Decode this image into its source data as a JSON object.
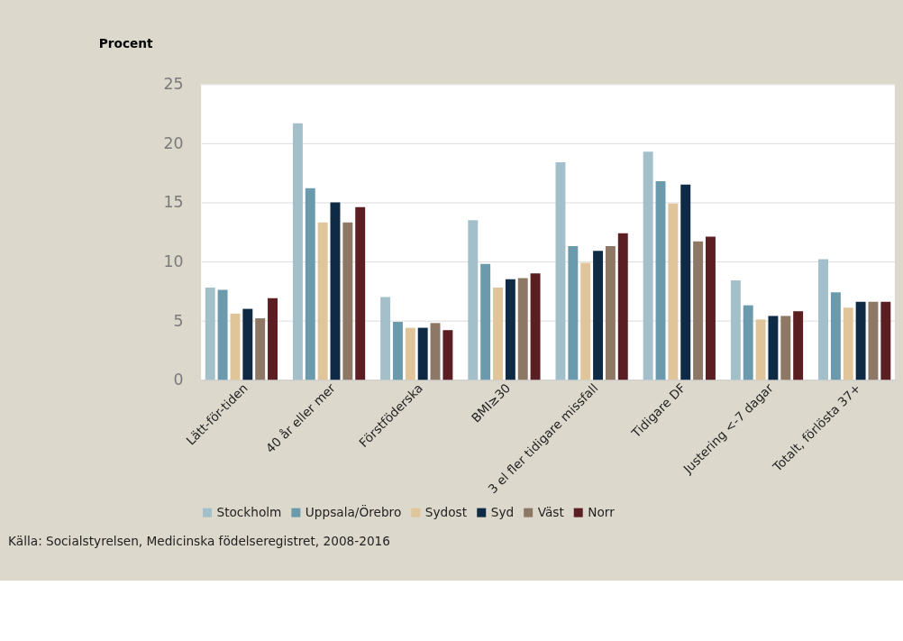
{
  "chart_data": {
    "type": "bar",
    "ylabel": "Procent",
    "categories": [
      "Lätt-för-tiden",
      "40 år eller mer",
      "Förstföderska",
      "BMI≥30",
      "3 el fler tidigare missfall",
      "Tidigare DF",
      "Justering <-7 dagar",
      "Totalt, förlösta 37+"
    ],
    "series": [
      {
        "name": "Stockholm",
        "color": "#a3bfca",
        "values": [
          7.8,
          21.7,
          7.0,
          13.5,
          18.4,
          19.3,
          8.4,
          10.2
        ]
      },
      {
        "name": "Uppsala/Örebro",
        "color": "#6a9aab",
        "values": [
          7.6,
          16.2,
          4.9,
          9.8,
          11.3,
          16.8,
          6.3,
          7.4
        ]
      },
      {
        "name": "Sydost",
        "color": "#e0c49a",
        "values": [
          5.6,
          13.3,
          4.4,
          7.8,
          9.9,
          14.9,
          5.1,
          6.1
        ]
      },
      {
        "name": "Syd",
        "color": "#0e2a45",
        "values": [
          6.0,
          15.0,
          4.4,
          8.5,
          10.9,
          16.5,
          5.4,
          6.6
        ]
      },
      {
        "name": "Väst",
        "color": "#8d7765",
        "values": [
          5.2,
          13.3,
          4.8,
          8.6,
          11.3,
          11.7,
          5.4,
          6.6
        ]
      },
      {
        "name": "Norr",
        "color": "#5a1e23",
        "values": [
          6.9,
          14.6,
          4.2,
          9.0,
          12.4,
          12.1,
          5.8,
          6.6
        ]
      }
    ],
    "ylim": [
      0,
      25
    ],
    "yticks": [
      0,
      5,
      10,
      15,
      20,
      25
    ],
    "grid": "y",
    "legend": "bottom",
    "annotations": [
      "Källa: Socialstyrelsen, Medicinska födelseregistret, 2008-2016"
    ]
  }
}
